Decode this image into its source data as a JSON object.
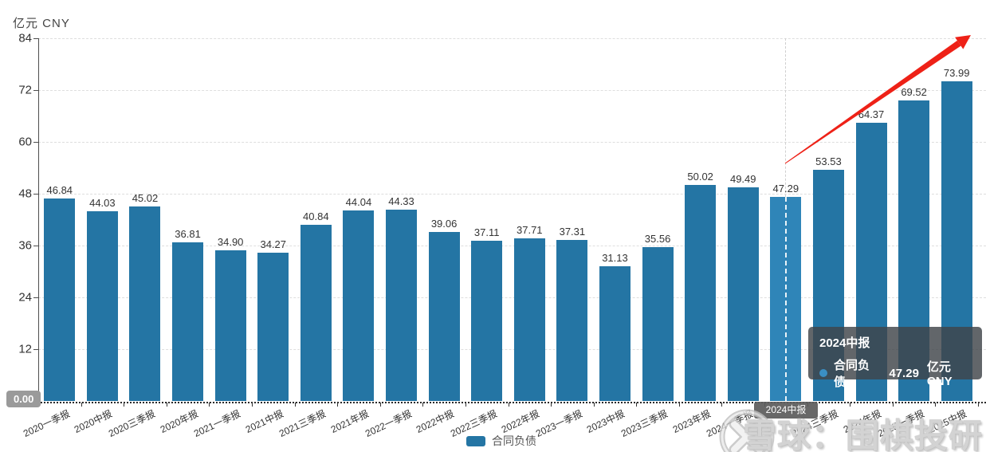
{
  "chart_data": {
    "type": "bar",
    "unit_label": "亿元 CNY",
    "categories": [
      "2020一季报",
      "2020中报",
      "2020三季报",
      "2020年报",
      "2021一季报",
      "2021中报",
      "2021三季报",
      "2021年报",
      "2022一季报",
      "2022中报",
      "2022三季报",
      "2022年报",
      "2023一季报",
      "2023中报",
      "2023三季报",
      "2023年报",
      "2024一季报",
      "2024中报",
      "2024三季报",
      "2024年报",
      "2025一季报",
      "2025中报"
    ],
    "series": [
      {
        "name": "合同负债",
        "values": [
          46.84,
          44.03,
          45.02,
          36.81,
          34.9,
          34.27,
          40.84,
          44.04,
          44.33,
          39.06,
          37.11,
          37.71,
          37.31,
          31.13,
          35.56,
          50.02,
          49.49,
          47.29,
          53.53,
          64.37,
          69.52,
          73.99
        ]
      }
    ],
    "ylim": [
      0,
      84
    ],
    "y_ticks": [
      84,
      72,
      60,
      48,
      36,
      24,
      12
    ],
    "grid": true,
    "legend_position": "bottom",
    "bar_color": "#2475a4",
    "highlight_color": "#2f85b8",
    "highlight_index": 17,
    "annotation_arrow_color": "#ee2117"
  },
  "tooltip": {
    "title": "2024中报",
    "series_label": "合同负债:",
    "value": "47.29",
    "unit": "亿元 CNY",
    "dot_color": "#3a8fc4"
  },
  "axis_pointer": {
    "x_label": "2024中报",
    "y_label": "0.00"
  },
  "legend": {
    "label": "合同负债"
  },
  "watermark": {
    "text": "雪球：围棋投研"
  }
}
